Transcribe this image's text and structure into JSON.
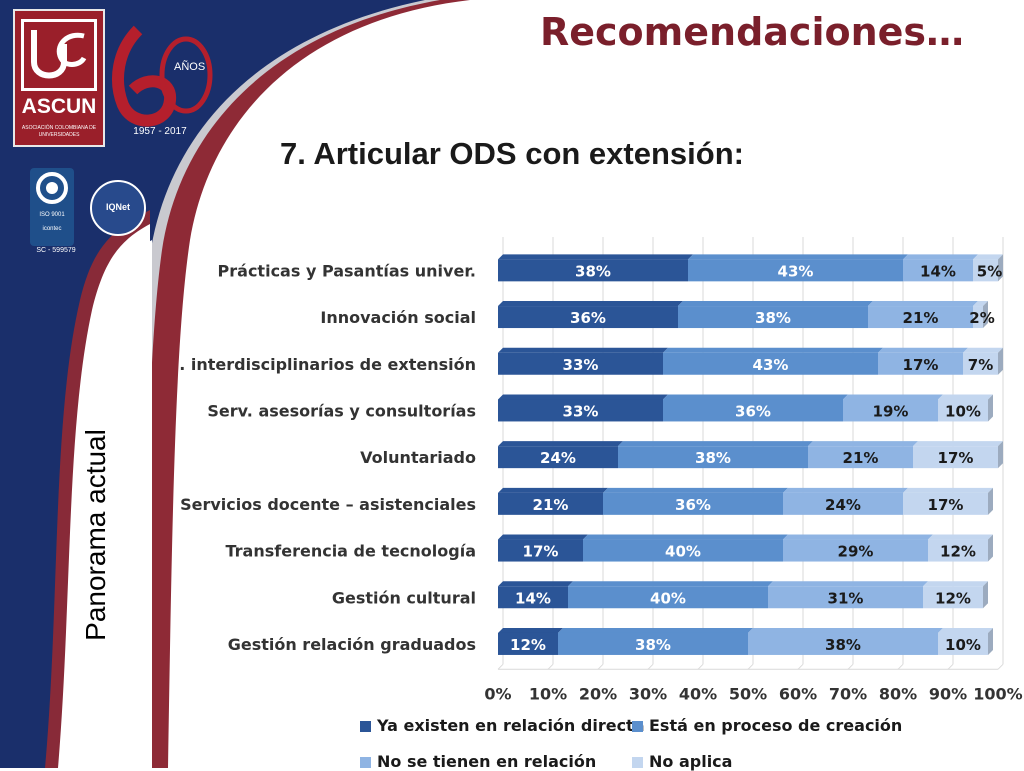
{
  "slide": {
    "title": "Recomendaciones…",
    "subtitle": "7. Articular ODS con extensión:",
    "side_label": "Panorama actual"
  },
  "branding": {
    "ascun": "ASCUN",
    "ascun_small": "ASOCIACIÓN COLOMBIANA DE UNIVERSIDADES",
    "anos": "AÑOS",
    "years": "1957 - 2017",
    "iso": "ISO 9001",
    "icontec": "icontec",
    "iqnet": "IQNet",
    "cert_code": "SC - 599579"
  },
  "colors": {
    "series": [
      "#2b5597",
      "#5b8fcd",
      "#8fb4e3",
      "#c3d6ef"
    ],
    "title": "#7a1f2b",
    "sidebar_navy": "#1a2f6b",
    "sidebar_red": "#8e2a36"
  },
  "chart_data": {
    "type": "bar",
    "orientation": "horizontal-stacked-100",
    "categories": [
      "Prácticas y Pasantías univer.",
      "Innovación social",
      "Prg. interdisciplinarios de extensión",
      "Serv. asesorías y consultorías",
      "Voluntariado",
      "Servicios docente – asistenciales",
      "Transferencia de tecnología",
      "Gestión cultural",
      "Gestión relación graduados"
    ],
    "series": [
      {
        "name": "Ya existen en relación directa",
        "values": [
          38,
          36,
          33,
          33,
          24,
          21,
          17,
          14,
          12
        ]
      },
      {
        "name": "Está en proceso de creación",
        "values": [
          43,
          38,
          43,
          36,
          38,
          36,
          40,
          40,
          38
        ]
      },
      {
        "name": "No se tienen en relación",
        "values": [
          14,
          21,
          17,
          19,
          21,
          24,
          29,
          31,
          38
        ]
      },
      {
        "name": "No aplica",
        "values": [
          5,
          2,
          7,
          10,
          17,
          17,
          12,
          12,
          10
        ]
      }
    ],
    "xticks": [
      "0%",
      "10%",
      "20%",
      "30%",
      "40%",
      "50%",
      "60%",
      "70%",
      "80%",
      "90%",
      "100%"
    ],
    "xlim": [
      0,
      100
    ],
    "grid": true,
    "legend_position": "bottom"
  }
}
